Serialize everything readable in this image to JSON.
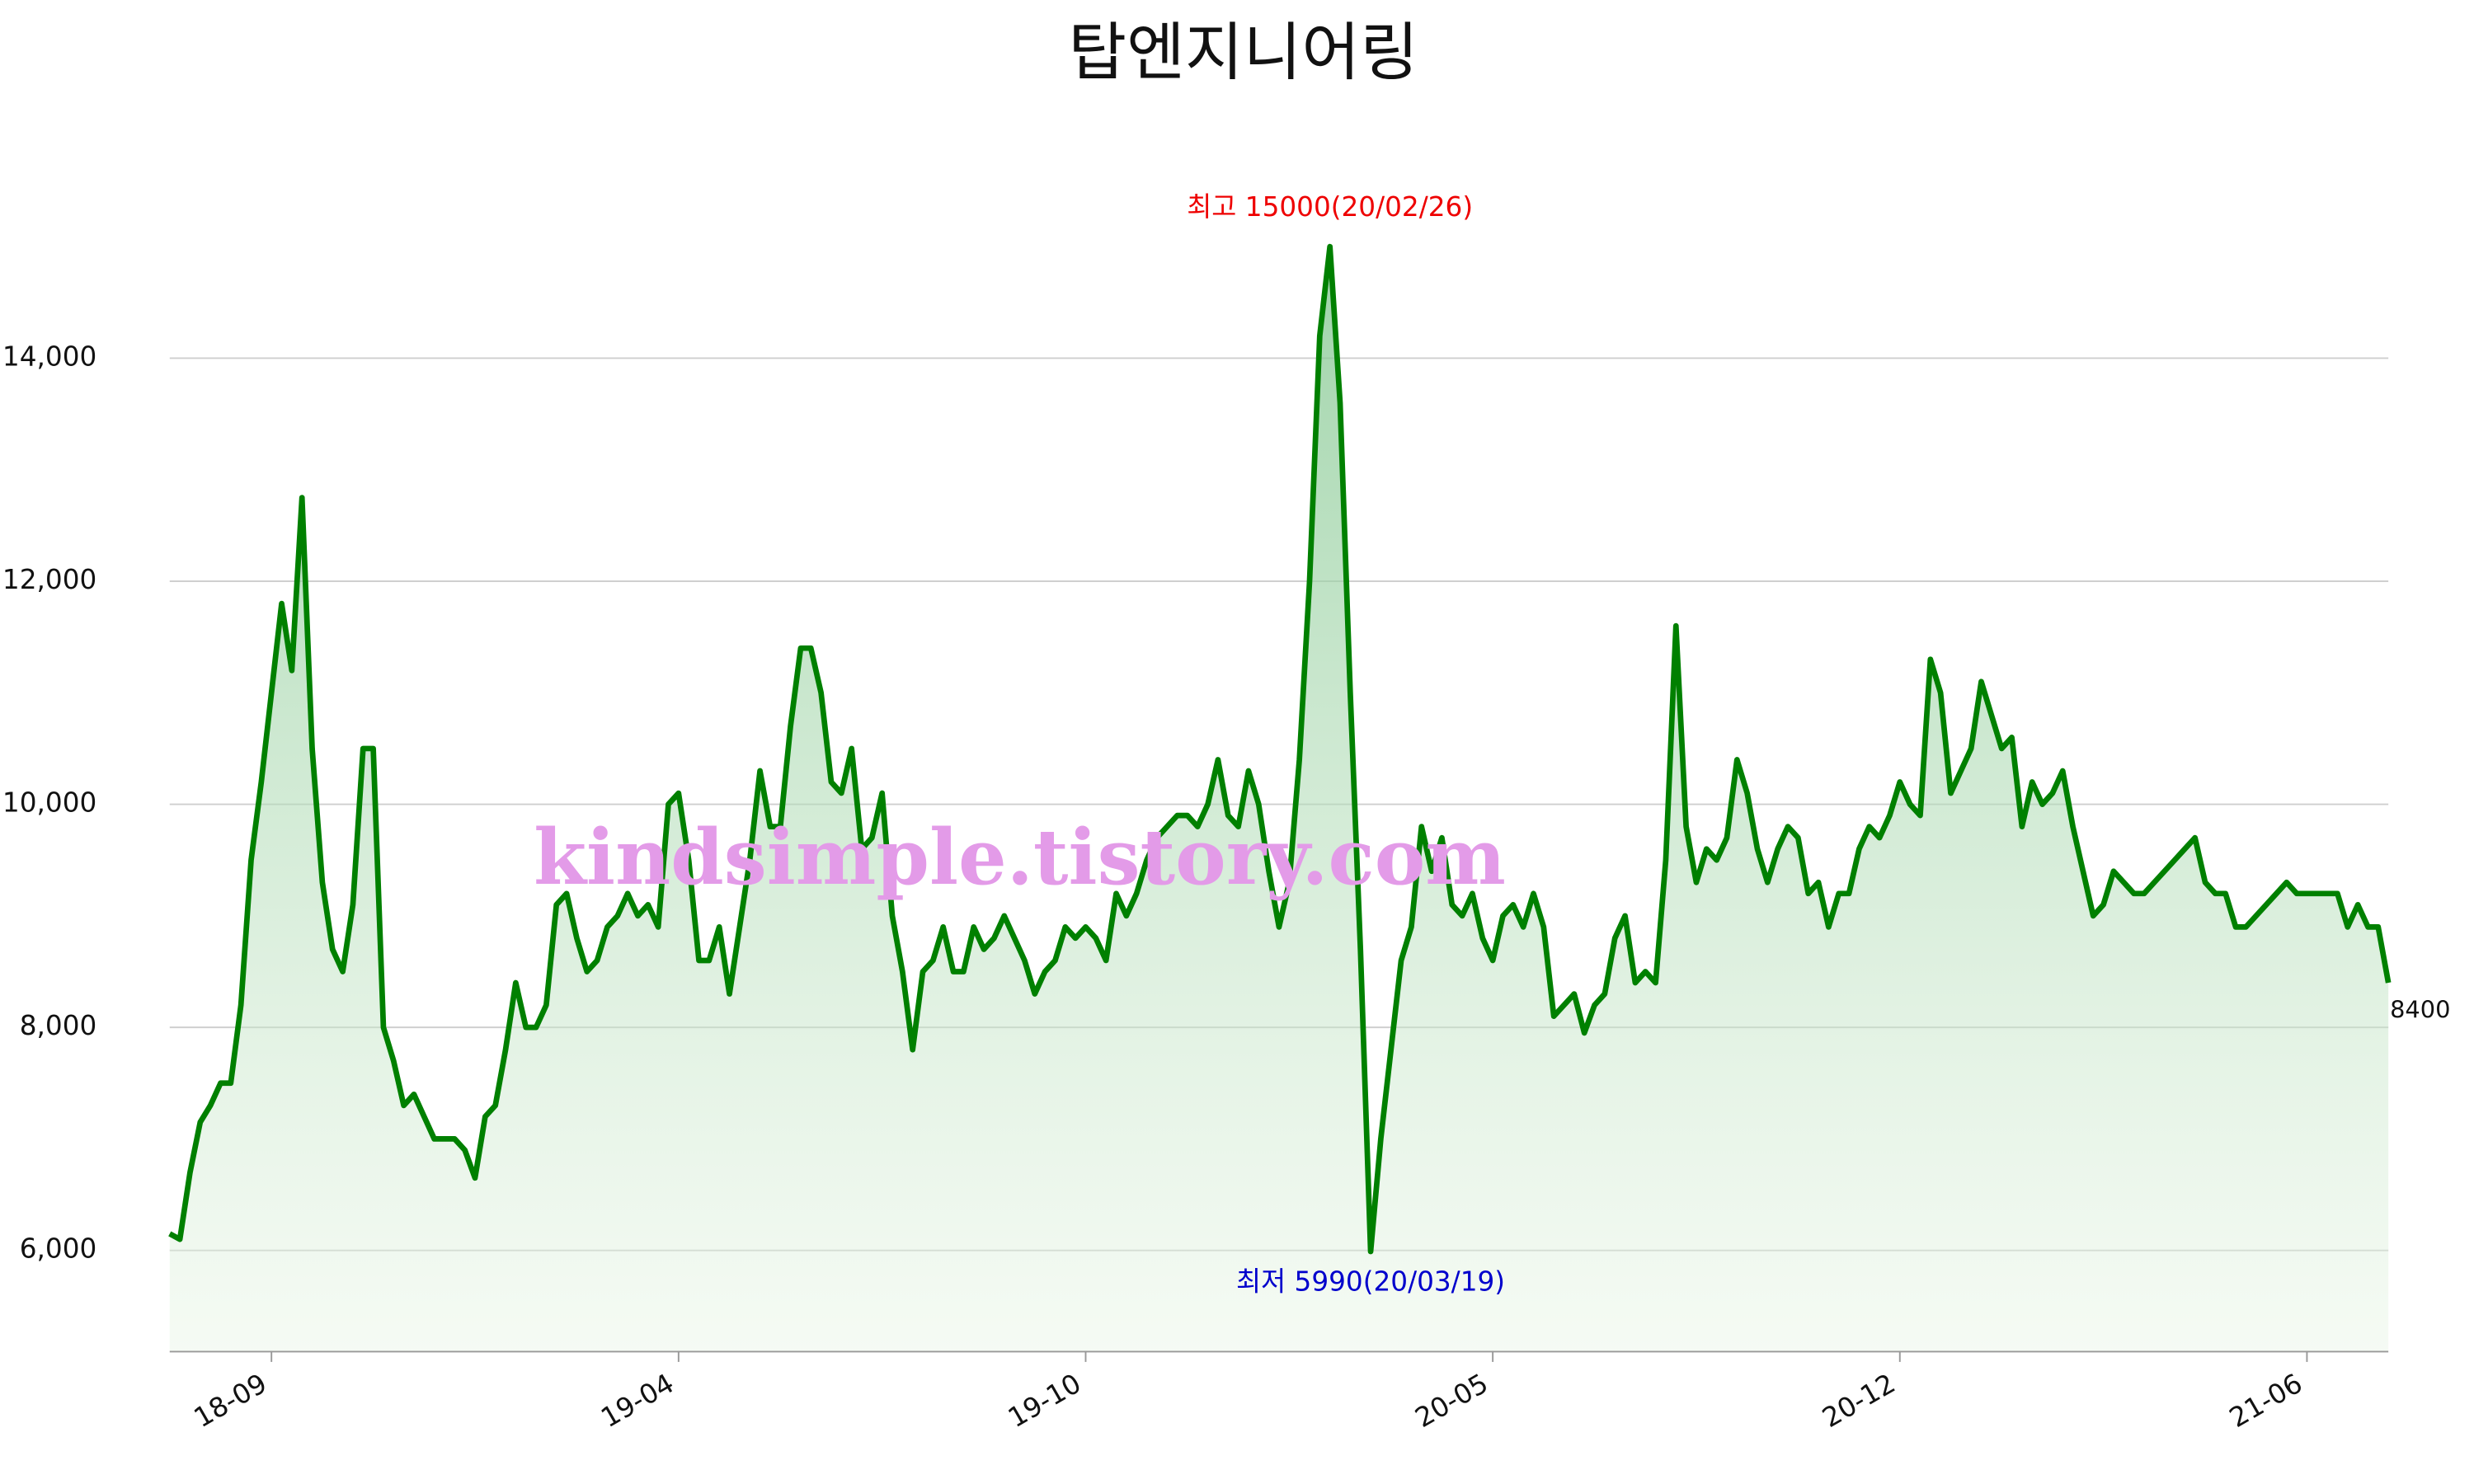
{
  "chart_data": {
    "type": "line",
    "title": "탑엔지니어링",
    "watermark": "kindsimple.tistory.com",
    "max_label": "최고 15000(20/02/26)",
    "min_label": "최저 5990(20/03/19)",
    "color": "#008000",
    "grid": true,
    "ylim": [
      5100,
      15500
    ],
    "yticks": [
      {
        "value": 6000,
        "label": "6,000"
      },
      {
        "value": 8000,
        "label": "8,000"
      },
      {
        "value": 10000,
        "label": "10,000"
      },
      {
        "value": 12000,
        "label": "12,000"
      },
      {
        "value": 14000,
        "label": "14,000"
      }
    ],
    "categories": [
      null,
      null,
      null,
      null,
      null,
      null,
      null,
      null,
      null,
      null,
      "18-09",
      null,
      null,
      null,
      null,
      null,
      null,
      null,
      null,
      null,
      null,
      null,
      null,
      null,
      null,
      null,
      null,
      null,
      null,
      null,
      null,
      null,
      null,
      null,
      null,
      null,
      null,
      null,
      null,
      null,
      null,
      null,
      null,
      null,
      null,
      null,
      null,
      null,
      null,
      null,
      "19-04",
      null,
      null,
      null,
      null,
      null,
      null,
      null,
      null,
      null,
      null,
      null,
      null,
      null,
      null,
      null,
      null,
      null,
      null,
      null,
      null,
      null,
      null,
      null,
      null,
      null,
      null,
      null,
      null,
      null,
      null,
      null,
      null,
      null,
      null,
      null,
      null,
      null,
      null,
      null,
      "19-10",
      null,
      null,
      null,
      null,
      null,
      null,
      null,
      null,
      null,
      null,
      null,
      null,
      null,
      null,
      null,
      null,
      null,
      null,
      null,
      null,
      null,
      null,
      null,
      null,
      null,
      null,
      null,
      null,
      null,
      null,
      null,
      null,
      null,
      null,
      null,
      null,
      null,
      null,
      null,
      "20-05",
      null,
      null,
      null,
      null,
      null,
      null,
      null,
      null,
      null,
      null,
      null,
      null,
      null,
      null,
      null,
      null,
      null,
      null,
      null,
      null,
      null,
      null,
      null,
      null,
      null,
      null,
      null,
      null,
      null,
      null,
      null,
      null,
      null,
      null,
      null,
      null,
      null,
      null,
      null,
      "20-12",
      null,
      null,
      null,
      null,
      null,
      null,
      null,
      null,
      null,
      null,
      null,
      null,
      null,
      null,
      null,
      null,
      null,
      null,
      null,
      null,
      null,
      null,
      null,
      null,
      null,
      null,
      null,
      null,
      null,
      null,
      null,
      null,
      null,
      null,
      null,
      null,
      null,
      null,
      null,
      "21-06",
      null,
      null,
      null,
      null,
      null,
      null,
      null,
      null
    ],
    "values": [
      6150,
      6100,
      6700,
      7150,
      7300,
      7500,
      7500,
      8200,
      9500,
      10200,
      11000,
      11800,
      11200,
      12750,
      10500,
      9300,
      8700,
      8500,
      9100,
      10500,
      10500,
      8000,
      7700,
      7300,
      7400,
      7200,
      7000,
      7000,
      7000,
      6900,
      6650,
      7200,
      7300,
      7800,
      8400,
      8000,
      8000,
      8200,
      9100,
      9200,
      8800,
      8500,
      8600,
      8900,
      9000,
      9200,
      9000,
      9100,
      8900,
      10000,
      10100,
      9500,
      8600,
      8600,
      8900,
      8300,
      8900,
      9500,
      10300,
      9800,
      9800,
      10700,
      11400,
      11400,
      11000,
      10200,
      10100,
      10500,
      9600,
      9700,
      10100,
      9000,
      8500,
      7800,
      8500,
      8600,
      8900,
      8500,
      8500,
      8900,
      8700,
      8800,
      9000,
      8800,
      8600,
      8300,
      8500,
      8600,
      8900,
      8800,
      8900,
      8800,
      8600,
      9200,
      9000,
      9200,
      9500,
      9700,
      9800,
      9900,
      9900,
      9800,
      10000,
      10400,
      9900,
      9800,
      10300,
      10000,
      9400,
      8900,
      9300,
      10400,
      12000,
      14200,
      15000,
      13600,
      11000,
      8700,
      5990,
      7000,
      7800,
      8600,
      8900,
      9800,
      9400,
      9700,
      9100,
      9000,
      9200,
      8800,
      8600,
      9000,
      9100,
      8900,
      9200,
      8900,
      8100,
      8200,
      8300,
      7950,
      8200,
      8300,
      8800,
      9000,
      8400,
      8500,
      8400,
      9500,
      11600,
      9800,
      9300,
      9600,
      9500,
      9700,
      10400,
      10100,
      9600,
      9300,
      9600,
      9800,
      9700,
      9200,
      9300,
      8900,
      9200,
      9200,
      9600,
      9800,
      9700,
      9900,
      10200,
      10000,
      9900,
      11300,
      11000,
      10100,
      10300,
      10500,
      11100,
      10800,
      10500,
      10600,
      9800,
      10200,
      10000,
      10100,
      10300,
      9800,
      9400,
      9000,
      9100,
      9400,
      9300,
      9200,
      9200,
      9300,
      9400,
      9500,
      9600,
      9700,
      9300,
      9200,
      9200,
      8900,
      8900,
      9000,
      9100,
      9200,
      9300,
      9200,
      9200,
      9200,
      9200,
      9200,
      8900,
      9100,
      8900,
      8900,
      8400
    ]
  }
}
